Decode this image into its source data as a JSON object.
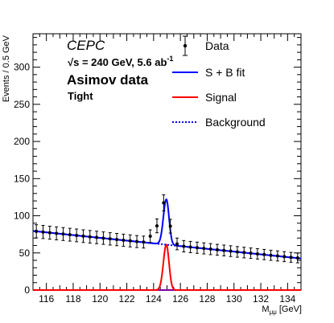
{
  "chart_data": {
    "type": "line",
    "xlabel": "M",
    "xlabel_sub": "μμ",
    "xlabel_unit": " [GeV]",
    "ylabel": "Events / 0.5 GeV",
    "xlim": [
      115,
      135
    ],
    "ylim": [
      0,
      345
    ],
    "x_ticks": [
      "116",
      "118",
      "120",
      "122",
      "124",
      "126",
      "128",
      "130",
      "132",
      "134"
    ],
    "y_ticks": [
      "0",
      "50",
      "100",
      "150",
      "200",
      "250",
      "300"
    ],
    "annotations": {
      "experiment": "CEPC",
      "sqrt_s": "√s = 240 GeV, 5.6 ab",
      "sqrt_s_sup": "-1",
      "dataset": "Asimov data",
      "selection": "Tight"
    },
    "legend_position": "top-right",
    "legend": [
      {
        "label": "Data",
        "style": "marker-errorbar",
        "color": "#000000"
      },
      {
        "label": "S + B fit",
        "style": "solid",
        "color": "#0000ff"
      },
      {
        "label": "Signal",
        "style": "solid",
        "color": "#ff0000"
      },
      {
        "label": "Background",
        "style": "dotted",
        "color": "#0000ff"
      }
    ],
    "background_model": {
      "type": "linear",
      "y_at_115": 79.5,
      "y_at_135": 42.5
    },
    "signal_model": {
      "peak_x": 124.95,
      "peak_y": 61,
      "sigma_left": 0.22,
      "sigma_right": 0.2
    },
    "series": [
      {
        "name": "Data",
        "type": "scatter",
        "x": [
          115.25,
          115.75,
          116.25,
          116.75,
          117.25,
          117.75,
          118.25,
          118.75,
          119.25,
          119.75,
          120.25,
          120.75,
          121.25,
          121.75,
          122.25,
          122.75,
          123.25,
          123.75,
          124.25,
          124.75,
          125.25,
          125.75,
          126.25,
          126.75,
          127.25,
          127.75,
          128.25,
          128.75,
          129.25,
          129.75,
          130.25,
          130.75,
          131.25,
          131.75,
          132.25,
          132.75,
          133.25,
          133.75,
          134.25,
          134.75
        ],
        "y": [
          79.1,
          78.2,
          77.2,
          76.3,
          75.4,
          74.5,
          73.6,
          72.6,
          71.7,
          70.8,
          69.9,
          68.9,
          68.0,
          67.1,
          66.2,
          65.3,
          64.6,
          72.5,
          86.4,
          117.4,
          86.0,
          62.1,
          59.0,
          57.9,
          57.0,
          56.1,
          55.1,
          54.2,
          53.3,
          52.4,
          51.4,
          50.5,
          49.6,
          48.7,
          47.8,
          46.8,
          45.9,
          45.0,
          44.1,
          43.2
        ]
      }
    ]
  }
}
